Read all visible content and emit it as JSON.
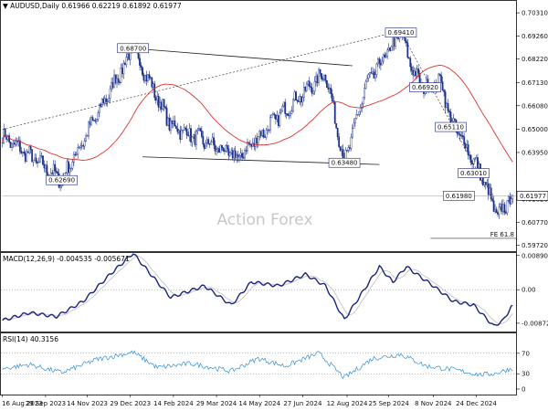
{
  "chart_data": [
    {
      "type": "candlestick",
      "name": "price",
      "symbol_label": "AUDUSD,Daily",
      "ohlc": {
        "open": "0.61966",
        "high": "0.62219",
        "low": "0.61892",
        "close": "0.61977"
      },
      "watermark": "Action Forex",
      "ylim": [
        0.5962,
        0.7073
      ],
      "y_ticks": [
        {
          "v": 0.7031,
          "t": "0.70310"
        },
        {
          "v": 0.6926,
          "t": "0.69260"
        },
        {
          "v": 0.6822,
          "t": "0.68220"
        },
        {
          "v": 0.6713,
          "t": "0.67130"
        },
        {
          "v": 0.6608,
          "t": "0.66080"
        },
        {
          "v": 0.65,
          "t": "0.65000"
        },
        {
          "v": 0.6395,
          "t": "0.63950"
        },
        {
          "v": 0.6182,
          "t": "0.61820"
        },
        {
          "v": 0.6077,
          "t": "0.60770"
        },
        {
          "v": 0.5972,
          "t": "0.59720"
        }
      ],
      "last_price": {
        "v": 0.61977,
        "t": "0.61977"
      },
      "annotations": [
        {
          "t": "0.62690",
          "v": 0.6269,
          "bar": 44
        },
        {
          "t": "0.68700",
          "v": 0.687,
          "bar": 97
        },
        {
          "t": "0.69410",
          "v": 0.6941,
          "bar": 296
        },
        {
          "t": "0.63480",
          "v": 0.6348,
          "bar": 254
        },
        {
          "t": "0.66920",
          "v": 0.6692,
          "bar": 314
        },
        {
          "t": "0.65110",
          "v": 0.6511,
          "bar": 333
        },
        {
          "t": "0.63010",
          "v": 0.6301,
          "bar": 350
        },
        {
          "t": "0.61980",
          "v": 0.6198,
          "bar": 339
        }
      ],
      "fe_label": "FE 61.8",
      "fe_level": 0.6004,
      "anchors": [
        {
          "bar": 0,
          "v": 0.647
        },
        {
          "bar": 44,
          "v": 0.6269
        },
        {
          "bar": 97,
          "v": 0.687
        },
        {
          "bar": 125,
          "v": 0.652
        },
        {
          "bar": 175,
          "v": 0.637
        },
        {
          "bar": 205,
          "v": 0.656
        },
        {
          "bar": 240,
          "v": 0.676
        },
        {
          "bar": 254,
          "v": 0.6348
        },
        {
          "bar": 270,
          "v": 0.67
        },
        {
          "bar": 296,
          "v": 0.6941
        },
        {
          "bar": 306,
          "v": 0.675
        },
        {
          "bar": 314,
          "v": 0.6692
        },
        {
          "bar": 326,
          "v": 0.672
        },
        {
          "bar": 333,
          "v": 0.654
        },
        {
          "bar": 343,
          "v": 0.644
        },
        {
          "bar": 355,
          "v": 0.6301
        },
        {
          "bar": 368,
          "v": 0.61
        },
        {
          "bar": 378,
          "v": 0.6197
        }
      ]
    },
    {
      "type": "line",
      "name": "macd",
      "label": "MACD(12,26,9) -0.004535 -0.005671",
      "ylim": [
        -0.0109,
        0.0098
      ],
      "y_ticks": [
        {
          "v": 0.008901,
          "t": "0.008901"
        },
        {
          "v": 0.0,
          "t": "0.00"
        },
        {
          "v": -0.008729,
          "t": "-0.008729"
        }
      ],
      "anchors": [
        {
          "bar": 0,
          "v": -0.008
        },
        {
          "bar": 20,
          "v": -0.006
        },
        {
          "bar": 40,
          "v": -0.007
        },
        {
          "bar": 60,
          "v": -0.003
        },
        {
          "bar": 80,
          "v": 0.004
        },
        {
          "bar": 97,
          "v": 0.0095
        },
        {
          "bar": 115,
          "v": 0.002
        },
        {
          "bar": 125,
          "v": -0.002
        },
        {
          "bar": 150,
          "v": 0.001
        },
        {
          "bar": 170,
          "v": -0.004
        },
        {
          "bar": 185,
          "v": 0.002
        },
        {
          "bar": 205,
          "v": 0.001
        },
        {
          "bar": 225,
          "v": 0.004
        },
        {
          "bar": 240,
          "v": 0.001
        },
        {
          "bar": 254,
          "v": -0.0078
        },
        {
          "bar": 280,
          "v": 0.006
        },
        {
          "bar": 290,
          "v": 0.002
        },
        {
          "bar": 300,
          "v": 0.006
        },
        {
          "bar": 320,
          "v": 0.001
        },
        {
          "bar": 335,
          "v": -0.003
        },
        {
          "bar": 350,
          "v": -0.004
        },
        {
          "bar": 365,
          "v": -0.0095
        },
        {
          "bar": 372,
          "v": -0.008
        },
        {
          "bar": 378,
          "v": -0.0045
        }
      ]
    },
    {
      "type": "line",
      "name": "rsi",
      "label": "RSI(14) 40.3156",
      "ylim": [
        0,
        100
      ],
      "y_ticks": [
        {
          "v": 70,
          "t": "70"
        },
        {
          "v": 30,
          "t": "30"
        },
        {
          "v": 0,
          "t": "0"
        }
      ],
      "anchors": [
        {
          "bar": 0,
          "v": 40
        },
        {
          "bar": 20,
          "v": 48
        },
        {
          "bar": 44,
          "v": 32
        },
        {
          "bar": 70,
          "v": 58
        },
        {
          "bar": 97,
          "v": 72
        },
        {
          "bar": 115,
          "v": 42
        },
        {
          "bar": 140,
          "v": 50
        },
        {
          "bar": 170,
          "v": 35
        },
        {
          "bar": 190,
          "v": 60
        },
        {
          "bar": 210,
          "v": 45
        },
        {
          "bar": 235,
          "v": 70
        },
        {
          "bar": 254,
          "v": 22
        },
        {
          "bar": 275,
          "v": 60
        },
        {
          "bar": 296,
          "v": 68
        },
        {
          "bar": 315,
          "v": 45
        },
        {
          "bar": 335,
          "v": 38
        },
        {
          "bar": 355,
          "v": 28
        },
        {
          "bar": 365,
          "v": 30
        },
        {
          "bar": 378,
          "v": 40
        }
      ]
    }
  ],
  "x_axis": {
    "ticks": [
      {
        "bar": 0,
        "t": "16 Aug 2023"
      },
      {
        "bar": 32,
        "t": "29 Sep 2023"
      },
      {
        "bar": 63,
        "t": "14 Nov 2023"
      },
      {
        "bar": 95,
        "t": "29 Dec 2023"
      },
      {
        "bar": 127,
        "t": "14 Feb 2024"
      },
      {
        "bar": 159,
        "t": "29 Mar 2024"
      },
      {
        "bar": 191,
        "t": "14 May 2024"
      },
      {
        "bar": 223,
        "t": "27 Jun 2024"
      },
      {
        "bar": 256,
        "t": "12 Aug 2024"
      },
      {
        "bar": 287,
        "t": "25 Sep 2024"
      },
      {
        "bar": 320,
        "t": "8 Nov 2024"
      },
      {
        "bar": 352,
        "t": "24 Dec 2024"
      }
    ]
  },
  "colors": {
    "bull": "#1a2f8a",
    "bear": "#1a2f8a",
    "ma": "#e0322c",
    "macd_main": "#1a237e",
    "macd_signal": "#bdbdbd",
    "rsi": "#2f8fd8",
    "trendline": "#222222",
    "grid": "#000000",
    "watermark": "#c8c8c8"
  }
}
